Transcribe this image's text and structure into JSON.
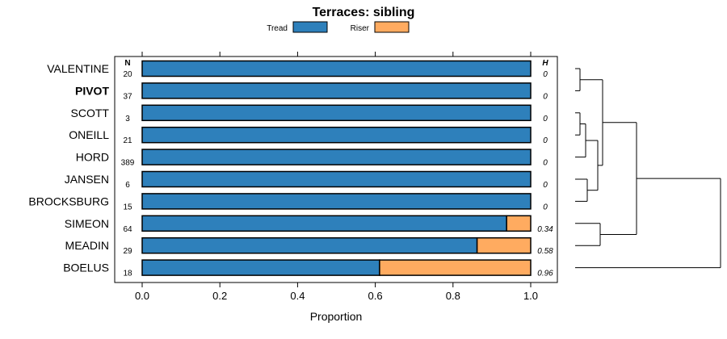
{
  "chart_data": {
    "type": "bar",
    "stacked": true,
    "orientation": "horizontal",
    "title": "Terraces: sibling",
    "xlabel": "Proportion",
    "xlim": [
      0,
      1
    ],
    "xticks": [
      "0.0",
      "0.2",
      "0.4",
      "0.6",
      "0.8",
      "1.0"
    ],
    "xtick_values": [
      0,
      0.2,
      0.4,
      0.6,
      0.8,
      1.0
    ],
    "n_header": "N",
    "h_header": "H",
    "legend": [
      {
        "name": "Tread",
        "color": "#2e80bb"
      },
      {
        "name": "Riser",
        "color": "#ffab60"
      }
    ],
    "highlight": "PIVOT",
    "rows": [
      {
        "label": "VALENTINE",
        "n": "20",
        "tread": 1.0,
        "riser": 0.0,
        "h": "0"
      },
      {
        "label": "PIVOT",
        "n": "37",
        "tread": 1.0,
        "riser": 0.0,
        "h": "0"
      },
      {
        "label": "SCOTT",
        "n": "3",
        "tread": 1.0,
        "riser": 0.0,
        "h": "0"
      },
      {
        "label": "ONEILL",
        "n": "21",
        "tread": 1.0,
        "riser": 0.0,
        "h": "0"
      },
      {
        "label": "HORD",
        "n": "389",
        "tread": 1.0,
        "riser": 0.0,
        "h": "0"
      },
      {
        "label": "JANSEN",
        "n": "6",
        "tread": 1.0,
        "riser": 0.0,
        "h": "0"
      },
      {
        "label": "BROCKSBURG",
        "n": "15",
        "tread": 1.0,
        "riser": 0.0,
        "h": "0"
      },
      {
        "label": "SIMEON",
        "n": "64",
        "tread": 0.938,
        "riser": 0.062,
        "h": "0.34"
      },
      {
        "label": "MEADIN",
        "n": "29",
        "tread": 0.862,
        "riser": 0.138,
        "h": "0.58"
      },
      {
        "label": "BOELUS",
        "n": "18",
        "tread": 0.611,
        "riser": 0.389,
        "h": "0.96"
      }
    ],
    "dendrogram_merges": [
      {
        "left": "VALENTINE",
        "right": "PIVOT"
      },
      {
        "left": "SCOTT",
        "right": "ONEILL"
      },
      {
        "left": "SCOTT+ONEILL",
        "right": "HORD"
      },
      {
        "left": "JANSEN",
        "right": "BROCKSBURG"
      },
      {
        "left": "SCOTT+ONEILL+HORD",
        "right": "JANSEN+BROCKSBURG"
      },
      {
        "left": "VALENTINE+PIVOT",
        "right": "SCOTT..BROCKSBURG"
      },
      {
        "left": "SIMEON",
        "right": "MEADIN"
      },
      {
        "left": "VALENTINE..BROCKSBURG",
        "right": "SIMEON+MEADIN"
      },
      {
        "left": "VALENTINE..MEADIN",
        "right": "BOELUS"
      }
    ]
  }
}
